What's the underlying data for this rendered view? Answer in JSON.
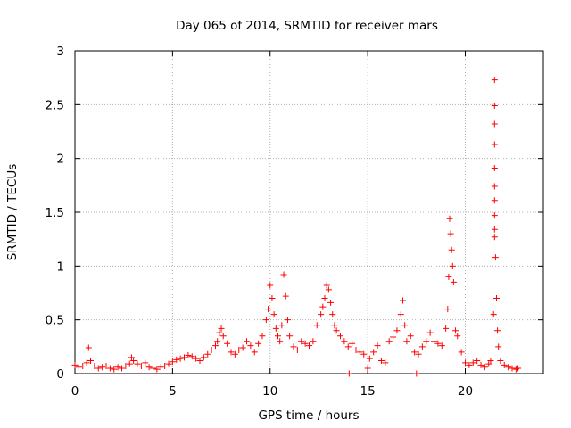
{
  "chart_data": {
    "type": "scatter",
    "title": "Day 065 of 2014, SRMTID for receiver mars",
    "xlabel": "GPS time / hours",
    "ylabel": "SRMTID / TECUs",
    "xlim": [
      0,
      24
    ],
    "ylim": [
      0,
      3
    ],
    "grid": true,
    "marker": "+",
    "color": "#ff0000",
    "x_ticks": [
      {
        "value": 0,
        "label": "0"
      },
      {
        "value": 5,
        "label": "5"
      },
      {
        "value": 10,
        "label": "10"
      },
      {
        "value": 15,
        "label": "15"
      },
      {
        "value": 20,
        "label": "20"
      }
    ],
    "y_ticks": [
      {
        "value": 0,
        "label": "0"
      },
      {
        "value": 0.5,
        "label": "0.5"
      },
      {
        "value": 1,
        "label": "1"
      },
      {
        "value": 1.5,
        "label": "1.5"
      },
      {
        "value": 2,
        "label": "2"
      },
      {
        "value": 2.5,
        "label": "2.5"
      },
      {
        "value": 3,
        "label": "3"
      }
    ],
    "series": [
      {
        "name": "SRMTID",
        "x": [
          0.0,
          0.2,
          0.4,
          0.6,
          0.7,
          0.8,
          1.0,
          1.2,
          1.4,
          1.6,
          1.8,
          2.0,
          2.2,
          2.4,
          2.6,
          2.8,
          2.9,
          3.0,
          3.2,
          3.4,
          3.6,
          3.8,
          4.0,
          4.2,
          4.4,
          4.6,
          4.8,
          5.0,
          5.2,
          5.4,
          5.6,
          5.8,
          6.0,
          6.2,
          6.4,
          6.6,
          6.8,
          7.0,
          7.2,
          7.3,
          7.4,
          7.5,
          7.6,
          7.8,
          8.0,
          8.2,
          8.4,
          8.6,
          8.8,
          9.0,
          9.2,
          9.4,
          9.6,
          9.8,
          9.9,
          10.0,
          10.1,
          10.2,
          10.3,
          10.4,
          10.5,
          10.6,
          10.7,
          10.8,
          10.9,
          11.0,
          11.2,
          11.4,
          11.6,
          11.8,
          12.0,
          12.2,
          12.4,
          12.6,
          12.7,
          12.8,
          12.9,
          13.0,
          13.1,
          13.2,
          13.3,
          13.4,
          13.6,
          13.8,
          14.0,
          14.05,
          14.2,
          14.4,
          14.6,
          14.8,
          15.0,
          15.1,
          15.3,
          15.5,
          15.7,
          15.9,
          16.1,
          16.3,
          16.5,
          16.7,
          16.8,
          16.9,
          17.0,
          17.2,
          17.4,
          17.5,
          17.6,
          17.8,
          18.0,
          18.2,
          18.4,
          18.6,
          18.8,
          19.0,
          19.1,
          19.15,
          19.2,
          19.25,
          19.3,
          19.35,
          19.4,
          19.5,
          19.6,
          19.8,
          20.0,
          20.2,
          20.4,
          20.6,
          20.8,
          21.0,
          21.2,
          21.3,
          21.45,
          21.5,
          21.5,
          21.5,
          21.5,
          21.5,
          21.5,
          21.5,
          21.5,
          21.5,
          21.5,
          21.55,
          21.6,
          21.65,
          21.7,
          21.8,
          22.0,
          22.2,
          22.4,
          22.6,
          22.7
        ],
        "y": [
          0.08,
          0.06,
          0.07,
          0.1,
          0.24,
          0.12,
          0.07,
          0.05,
          0.06,
          0.07,
          0.05,
          0.04,
          0.06,
          0.05,
          0.07,
          0.09,
          0.15,
          0.12,
          0.09,
          0.07,
          0.1,
          0.06,
          0.05,
          0.04,
          0.06,
          0.07,
          0.09,
          0.11,
          0.13,
          0.14,
          0.15,
          0.17,
          0.16,
          0.14,
          0.12,
          0.15,
          0.18,
          0.22,
          0.26,
          0.3,
          0.38,
          0.42,
          0.35,
          0.28,
          0.2,
          0.18,
          0.22,
          0.24,
          0.3,
          0.26,
          0.2,
          0.28,
          0.35,
          0.5,
          0.6,
          0.82,
          0.7,
          0.55,
          0.42,
          0.35,
          0.3,
          0.45,
          0.92,
          0.72,
          0.5,
          0.35,
          0.25,
          0.22,
          0.3,
          0.28,
          0.26,
          0.3,
          0.45,
          0.55,
          0.62,
          0.7,
          0.82,
          0.78,
          0.66,
          0.55,
          0.45,
          0.4,
          0.35,
          0.3,
          0.25,
          0.0,
          0.28,
          0.22,
          0.2,
          0.18,
          0.05,
          0.14,
          0.2,
          0.26,
          0.12,
          0.1,
          0.3,
          0.34,
          0.4,
          0.55,
          0.68,
          0.45,
          0.3,
          0.35,
          0.2,
          0.0,
          0.18,
          0.25,
          0.3,
          0.38,
          0.3,
          0.28,
          0.26,
          0.42,
          0.6,
          0.9,
          1.44,
          1.3,
          1.15,
          1.0,
          0.85,
          0.4,
          0.35,
          0.2,
          0.1,
          0.08,
          0.1,
          0.12,
          0.08,
          0.06,
          0.09,
          0.12,
          0.55,
          2.73,
          2.49,
          2.32,
          2.13,
          1.91,
          1.74,
          1.61,
          1.47,
          1.34,
          1.27,
          1.08,
          0.7,
          0.4,
          0.25,
          0.12,
          0.08,
          0.06,
          0.05,
          0.04,
          0.05
        ]
      }
    ]
  }
}
